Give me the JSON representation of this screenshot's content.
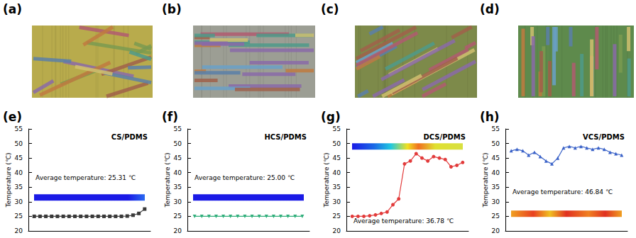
{
  "image_panels": [
    {
      "label": "(a)"
    },
    {
      "label": "(b)"
    },
    {
      "label": "(c)"
    },
    {
      "label": "(d)"
    }
  ],
  "chart_data": [
    {
      "type": "line",
      "panel_label": "(e)",
      "title": "CS/PDMS",
      "y_label": "Temperature (℃)",
      "annotations": [
        "Average temperature: 25.31 ℃"
      ],
      "x": [
        1,
        2,
        3,
        4,
        5,
        6,
        7,
        8,
        9,
        10,
        11,
        12,
        13,
        14,
        15,
        16,
        17,
        18,
        19,
        20
      ],
      "values": [
        25.0,
        25.0,
        25.0,
        25.0,
        25.0,
        25.0,
        25.0,
        25.0,
        25.0,
        25.0,
        25.0,
        25.0,
        25.0,
        25.0,
        25.0,
        25.0,
        25.1,
        25.4,
        26.0,
        27.5
      ],
      "color": "#3a3a3a",
      "marker": "square",
      "xlim": [
        0,
        21
      ],
      "ylim": [
        20,
        55
      ],
      "yticks": [
        20,
        25,
        30,
        35,
        40,
        45,
        50,
        55
      ],
      "tick_labels": "y",
      "grid": false
    },
    {
      "type": "line",
      "panel_label": "(f)",
      "title": "HCS/PDMS",
      "y_label": "Temperature (℃)",
      "annotations": [
        "Average temperature: 25.00 ℃"
      ],
      "x": [
        1,
        2,
        3,
        4,
        5,
        6,
        7,
        8,
        9,
        10,
        11,
        12,
        13,
        14,
        15,
        16
      ],
      "values": [
        25.0,
        25.0,
        25.0,
        25.0,
        25.0,
        25.0,
        25.0,
        25.0,
        25.0,
        25.0,
        25.0,
        25.0,
        25.0,
        25.0,
        25.0,
        25.0
      ],
      "color": "#2fae7a",
      "marker": "triangle-down",
      "xlim": [
        0,
        17
      ],
      "ylim": [
        20,
        55
      ],
      "yticks": [
        20,
        25,
        30,
        35,
        40,
        45,
        50,
        55
      ],
      "tick_labels": "y",
      "grid": false
    },
    {
      "type": "line",
      "panel_label": "(g)",
      "title": "DCS/PDMS",
      "y_label": "Temperature (℃)",
      "annotations": [
        "Average temperature: 36.78 ℃"
      ],
      "x": [
        1,
        2,
        3,
        4,
        5,
        6,
        7,
        8,
        9,
        10,
        11,
        12,
        13,
        14,
        15,
        16,
        17,
        18,
        19,
        20
      ],
      "values": [
        25.0,
        25.0,
        25.0,
        25.2,
        25.5,
        26.0,
        26.5,
        29.0,
        31.0,
        43.0,
        44.0,
        46.5,
        45.0,
        44.0,
        45.5,
        45.0,
        44.5,
        42.0,
        42.5,
        43.5
      ],
      "color": "#e23b3b",
      "marker": "circle",
      "xlim": [
        0,
        21
      ],
      "ylim": [
        20,
        55
      ],
      "yticks": [
        20,
        25,
        30,
        35,
        40,
        45,
        50,
        55
      ],
      "tick_labels": "y",
      "grid": false
    },
    {
      "type": "line",
      "panel_label": "(h)",
      "title": "VCS/PDMS",
      "y_label": "Temperature (℃)",
      "annotations": [
        "Average temperature: 46.84 ℃"
      ],
      "x": [
        1,
        2,
        3,
        4,
        5,
        6,
        7,
        8,
        9,
        10,
        11,
        12,
        13,
        14,
        15,
        16,
        17,
        18,
        19,
        20
      ],
      "values": [
        47.5,
        48.0,
        47.5,
        46.0,
        47.0,
        45.5,
        44.0,
        43.0,
        45.0,
        48.5,
        49.0,
        48.5,
        49.0,
        48.5,
        48.0,
        48.5,
        48.0,
        47.0,
        46.5,
        46.0
      ],
      "color": "#3a62c8",
      "marker": "triangle",
      "xlim": [
        0,
        21
      ],
      "ylim": [
        20,
        55
      ],
      "yticks": [
        20,
        25,
        30,
        35,
        40,
        45,
        50,
        55
      ],
      "tick_labels": "y",
      "grid": false
    }
  ]
}
